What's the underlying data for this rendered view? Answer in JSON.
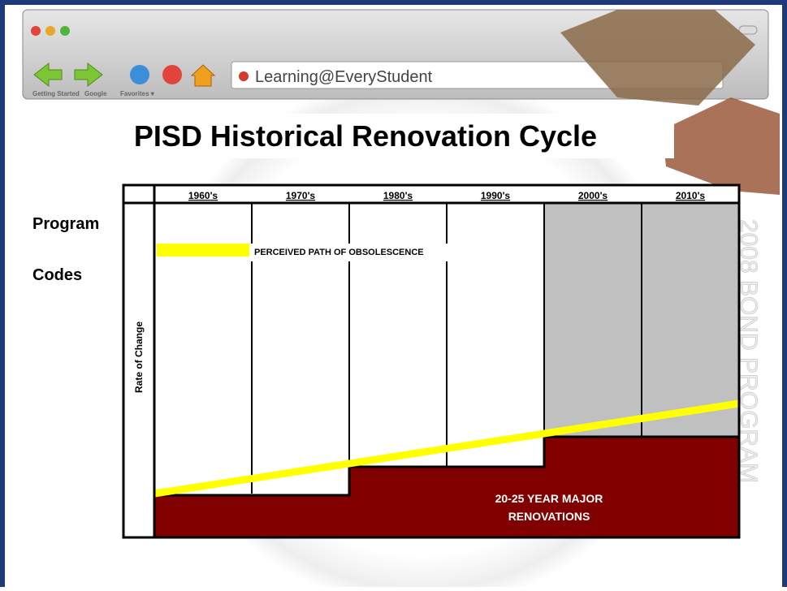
{
  "browser": {
    "address": "Learning@EveryStudent",
    "bookmarks": [
      "Getting Started",
      "Google",
      "Favorites ▾"
    ]
  },
  "slide": {
    "title": "PISD Historical Renovation Cycle",
    "side_labels": [
      "Program",
      "Codes"
    ],
    "watermark": "2008 BOND PROGRAM"
  },
  "diagram": {
    "decades": [
      "1960's",
      "1970's",
      "1980's",
      "1990's",
      "2000's",
      "2010's"
    ],
    "axis_label": "Rate of Change",
    "legend": "PERCEIVED PATH OF OBSOLESCENCE",
    "renovation_label": [
      "20-25 YEAR MAJOR",
      "RENOVATIONS"
    ]
  }
}
